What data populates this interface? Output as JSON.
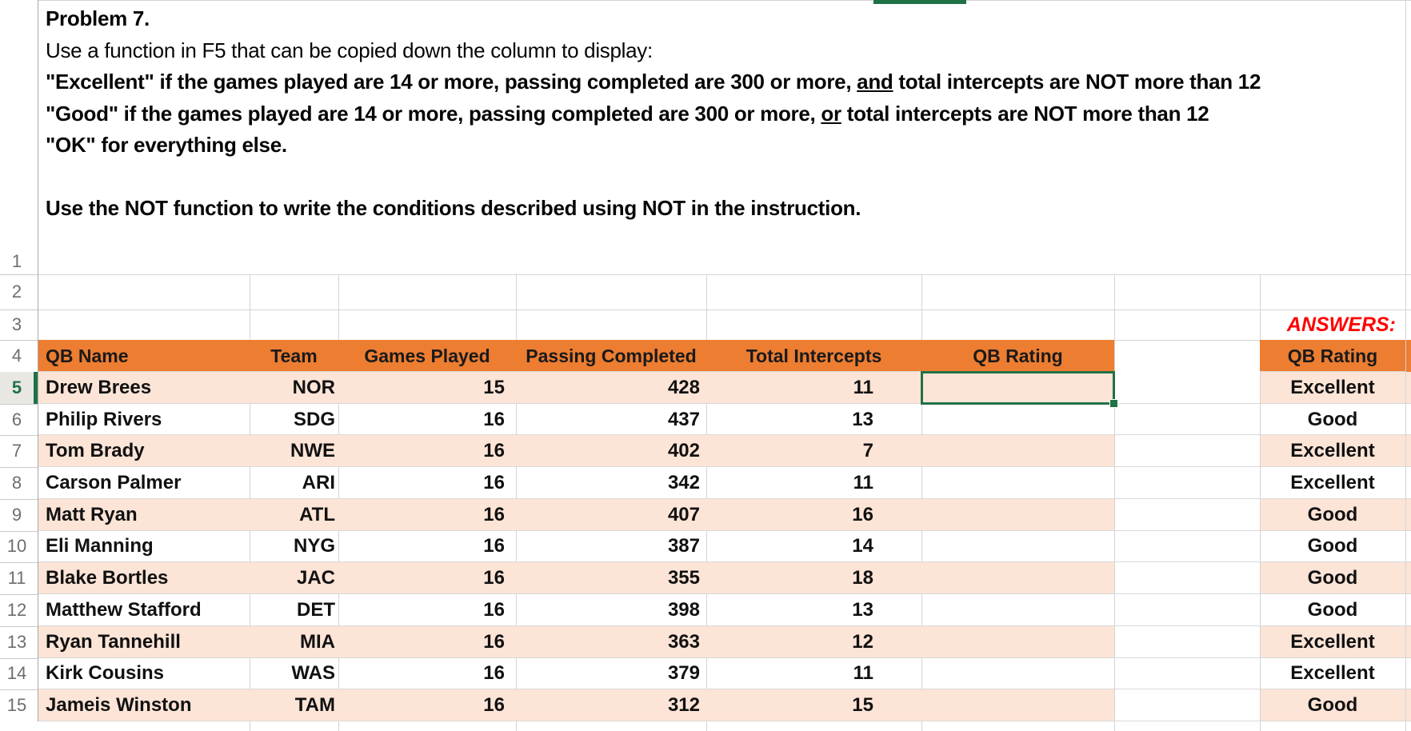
{
  "colors": {
    "header_orange": "#ED7D31",
    "band_orange": "#FCE4D6",
    "selection_green": "#1F7246",
    "answers_red": "#FF0000",
    "gridline": "#D4D4D4",
    "row_header_border": "#A9A9A9",
    "row_number_grey": "#6E6E6E",
    "selected_row_header_bg": "#E9E7E4"
  },
  "problem": {
    "lines": [
      {
        "bold": true,
        "segments": [
          {
            "text": "Problem 7."
          }
        ]
      },
      {
        "bold": false,
        "segments": [
          {
            "text": "Use a function in F5 that can be copied down the column to display:"
          }
        ]
      },
      {
        "bold": true,
        "segments": [
          {
            "text": "\"Excellent\" if the games played are 14 or more, passing completed are 300 or more, "
          },
          {
            "text": "and",
            "underline": true
          },
          {
            "text": " total intercepts are NOT more than 12"
          }
        ]
      },
      {
        "bold": true,
        "segments": [
          {
            "text": "\"Good\" if the games played are 14 or more, passing completed are 300 or more, "
          },
          {
            "text": "or",
            "underline": true
          },
          {
            "text": " total intercepts are NOT more than 12"
          }
        ]
      },
      {
        "bold": true,
        "segments": [
          {
            "text": "\"OK\" for everything else."
          }
        ]
      },
      {
        "bold": true,
        "segments": [
          {
            "text": ""
          }
        ]
      },
      {
        "bold": true,
        "segments": [
          {
            "text": "Use the NOT function to write the conditions described using NOT in the instruction."
          }
        ]
      }
    ]
  },
  "sheet": {
    "row_numbers": [
      1,
      2,
      3,
      4,
      5,
      6,
      7,
      8,
      9,
      10,
      11,
      12,
      13,
      14,
      15
    ],
    "selected_row": 5,
    "selected_cell": "F5",
    "answers_label": "ANSWERS:"
  },
  "table": {
    "headers": [
      "QB Name",
      "Team",
      "Games Played",
      "Passing Completed",
      "Total Intercepts",
      "QB Rating"
    ],
    "answer_header": "QB Rating",
    "rows": [
      {
        "row": 5,
        "name": "Drew Brees",
        "team": "NOR",
        "games": "15",
        "passing": "428",
        "intercepts": "11",
        "rating": "",
        "answer": "Excellent"
      },
      {
        "row": 6,
        "name": "Philip Rivers",
        "team": "SDG",
        "games": "16",
        "passing": "437",
        "intercepts": "13",
        "rating": "",
        "answer": "Good"
      },
      {
        "row": 7,
        "name": "Tom Brady",
        "team": "NWE",
        "games": "16",
        "passing": "402",
        "intercepts": "7",
        "rating": "",
        "answer": "Excellent"
      },
      {
        "row": 8,
        "name": "Carson Palmer",
        "team": "ARI",
        "games": "16",
        "passing": "342",
        "intercepts": "11",
        "rating": "",
        "answer": "Excellent"
      },
      {
        "row": 9,
        "name": "Matt Ryan",
        "team": "ATL",
        "games": "16",
        "passing": "407",
        "intercepts": "16",
        "rating": "",
        "answer": "Good"
      },
      {
        "row": 10,
        "name": "Eli Manning",
        "team": "NYG",
        "games": "16",
        "passing": "387",
        "intercepts": "14",
        "rating": "",
        "answer": "Good"
      },
      {
        "row": 11,
        "name": "Blake Bortles",
        "team": "JAC",
        "games": "16",
        "passing": "355",
        "intercepts": "18",
        "rating": "",
        "answer": "Good"
      },
      {
        "row": 12,
        "name": "Matthew Stafford",
        "team": "DET",
        "games": "16",
        "passing": "398",
        "intercepts": "13",
        "rating": "",
        "answer": "Good"
      },
      {
        "row": 13,
        "name": "Ryan Tannehill",
        "team": "MIA",
        "games": "16",
        "passing": "363",
        "intercepts": "12",
        "rating": "",
        "answer": "Excellent"
      },
      {
        "row": 14,
        "name": "Kirk Cousins",
        "team": "WAS",
        "games": "16",
        "passing": "379",
        "intercepts": "11",
        "rating": "",
        "answer": "Excellent"
      },
      {
        "row": 15,
        "name": "Jameis Winston",
        "team": "TAM",
        "games": "16",
        "passing": "312",
        "intercepts": "15",
        "rating": "",
        "answer": "Good"
      }
    ]
  }
}
